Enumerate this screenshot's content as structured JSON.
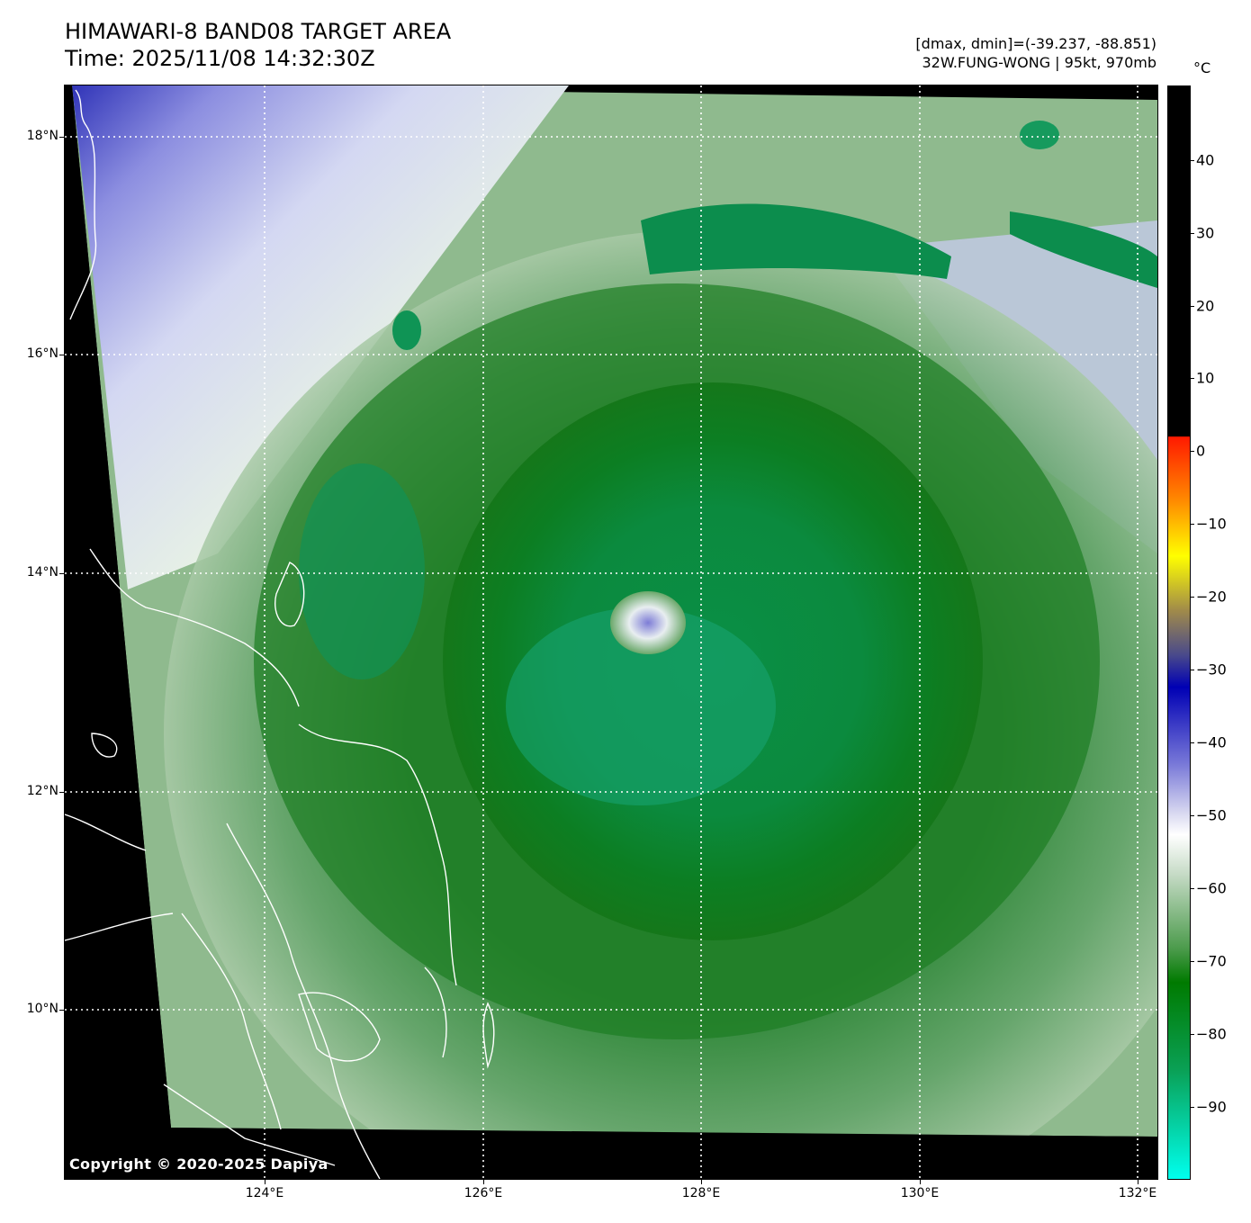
{
  "header": {
    "title_line1": "HIMAWARI-8 BAND08 TARGET AREA",
    "title_line2": "Time: 2025/11/08 14:32:30Z",
    "stats": "[dmax, dmin]=(-39.237, -88.851)",
    "storm": "32W.FUNG-WONG | 95kt, 970mb"
  },
  "map": {
    "y_axis": [
      "18°N",
      "16°N",
      "14°N",
      "12°N",
      "10°N"
    ],
    "x_axis": [
      "124°E",
      "126°E",
      "128°E",
      "130°E",
      "132°E"
    ],
    "copyright": "Copyright © 2020-2025 Dapiya"
  },
  "colorbar": {
    "unit": "°C",
    "labels": [
      "40",
      "30",
      "20",
      "10",
      "0",
      "−10",
      "−20",
      "−30",
      "−40",
      "−50",
      "−60",
      "−70",
      "−80",
      "−90"
    ]
  }
}
